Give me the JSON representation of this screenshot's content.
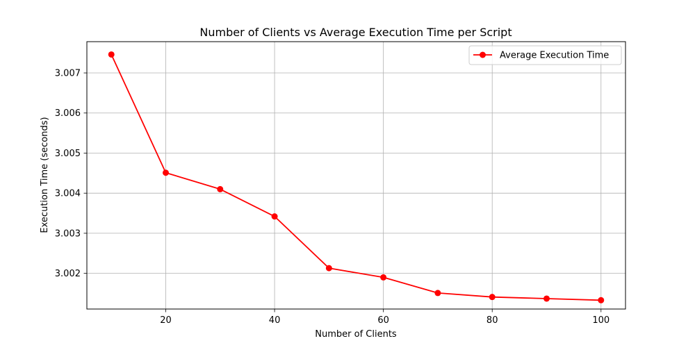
{
  "chart_data": {
    "type": "line",
    "title": "Number of Clients vs Average Execution Time per Script",
    "xlabel": "Number of Clients",
    "ylabel": "Execution Time (seconds)",
    "xlim": [
      5.5,
      104.5
    ],
    "ylim": [
      3.00111,
      3.00778
    ],
    "xticks": [
      20,
      40,
      60,
      80,
      100
    ],
    "yticks": [
      3.002,
      3.003,
      3.004,
      3.005,
      3.006,
      3.007
    ],
    "ytick_labels": [
      "3.002",
      "3.003",
      "3.004",
      "3.005",
      "3.006",
      "3.007"
    ],
    "grid": true,
    "legend": "top-right",
    "series": [
      {
        "name": "Average Execution Time",
        "color": "#ff0000",
        "marker": "circle",
        "x": [
          10,
          20,
          30,
          40,
          50,
          60,
          70,
          80,
          90,
          100
        ],
        "y": [
          3.00746,
          3.00451,
          3.0041,
          3.00342,
          3.00213,
          3.0019,
          3.00151,
          3.00141,
          3.00137,
          3.00133
        ]
      }
    ]
  }
}
